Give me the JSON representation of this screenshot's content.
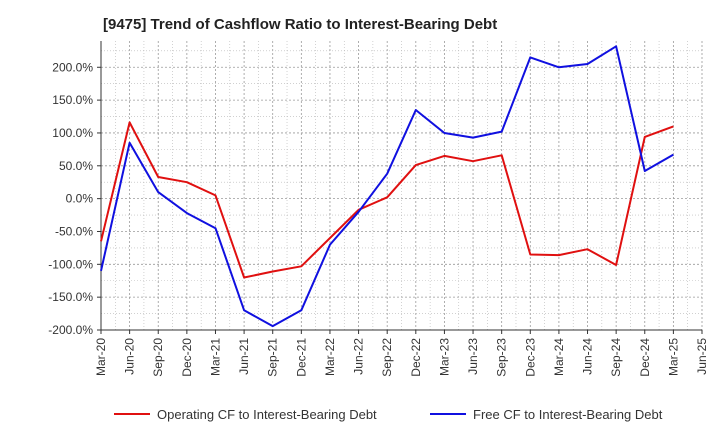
{
  "chart_data": {
    "type": "line",
    "title": "[9475]  Trend of Cashflow Ratio to Interest-Bearing Debt",
    "xlabel": "",
    "ylabel": "",
    "categories": [
      "Mar-20",
      "Jun-20",
      "Sep-20",
      "Dec-20",
      "Mar-21",
      "Jun-21",
      "Sep-21",
      "Dec-21",
      "Mar-22",
      "Jun-22",
      "Sep-22",
      "Dec-22",
      "Mar-23",
      "Jun-23",
      "Sep-23",
      "Dec-23",
      "Mar-24",
      "Jun-24",
      "Sep-24",
      "Dec-24",
      "Mar-25",
      "Jun-25"
    ],
    "ylim": [
      -200,
      240
    ],
    "yticks": [
      -200,
      -150,
      -100,
      -50,
      0,
      50,
      100,
      150,
      200
    ],
    "ytick_labels": [
      "-200.0%",
      "-150.0%",
      "-100.0%",
      "-50.0%",
      "0.0%",
      "50.0%",
      "100.0%",
      "150.0%",
      "200.0%"
    ],
    "grid": true,
    "legend_position": "bottom",
    "series": [
      {
        "name": "Operating CF to Interest-Bearing Debt",
        "color": "#e01010",
        "values": [
          -65,
          116,
          33,
          25,
          5,
          -120,
          -111,
          -103,
          -60,
          -17,
          2,
          51,
          65,
          57,
          66,
          -85,
          -86,
          -77,
          -101,
          94,
          110,
          null
        ]
      },
      {
        "name": "Free CF to Interest-Bearing Debt",
        "color": "#1010e0",
        "values": [
          -110,
          85,
          10,
          -22,
          -45,
          -170,
          -194,
          -170,
          -70,
          -20,
          38,
          135,
          100,
          93,
          102,
          215,
          200,
          205,
          232,
          42,
          67,
          null
        ]
      }
    ]
  }
}
